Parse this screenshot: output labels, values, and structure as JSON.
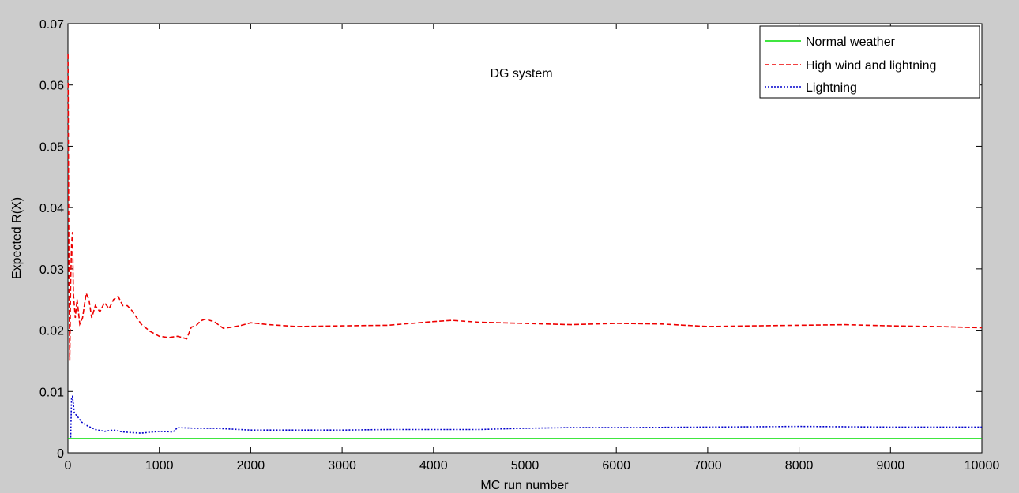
{
  "chart_data": {
    "type": "line",
    "title": "DG system",
    "xlabel": "MC run number",
    "ylabel": "Expected R(X)",
    "xlim": [
      0,
      10000
    ],
    "ylim": [
      0,
      0.07
    ],
    "xticks": [
      0,
      1000,
      2000,
      3000,
      4000,
      5000,
      6000,
      7000,
      8000,
      9000,
      10000
    ],
    "xtick_labels": [
      "0",
      "1000",
      "2000",
      "3000",
      "4000",
      "5000",
      "6000",
      "7000",
      "8000",
      "9000",
      "10000"
    ],
    "yticks": [
      0,
      0.01,
      0.02,
      0.03,
      0.04,
      0.05,
      0.06,
      0.07
    ],
    "ytick_labels": [
      "0",
      "0.01",
      "0.02",
      "0.03",
      "0.04",
      "0.05",
      "0.06",
      "0.07"
    ],
    "grid": false,
    "legend_position": "top-right",
    "series": [
      {
        "name": "Normal weather",
        "color": "#00dd00",
        "style": "solid",
        "x": [
          0,
          10000
        ],
        "y": [
          0.0023,
          0.0023
        ]
      },
      {
        "name": "High wind and lightning",
        "color": "#ee0000",
        "style": "dashed",
        "x": [
          1,
          10,
          20,
          30,
          40,
          50,
          60,
          80,
          100,
          130,
          160,
          200,
          230,
          260,
          300,
          350,
          400,
          450,
          500,
          550,
          600,
          650,
          700,
          800,
          900,
          1000,
          1100,
          1200,
          1300,
          1350,
          1400,
          1450,
          1500,
          1600,
          1700,
          1800,
          1900,
          2000,
          2200,
          2500,
          3000,
          3500,
          4000,
          4200,
          4500,
          5000,
          5500,
          6000,
          6500,
          7000,
          7500,
          8000,
          8500,
          9000,
          9500,
          10000
        ],
        "y": [
          0.065,
          0.03,
          0.015,
          0.028,
          0.034,
          0.036,
          0.026,
          0.022,
          0.025,
          0.021,
          0.022,
          0.026,
          0.025,
          0.022,
          0.024,
          0.023,
          0.0245,
          0.0235,
          0.025,
          0.0255,
          0.024,
          0.024,
          0.0232,
          0.021,
          0.0198,
          0.019,
          0.0188,
          0.019,
          0.0186,
          0.0205,
          0.0207,
          0.0215,
          0.0218,
          0.0214,
          0.0203,
          0.0205,
          0.0208,
          0.0212,
          0.0209,
          0.0206,
          0.0207,
          0.0208,
          0.0214,
          0.0216,
          0.0213,
          0.0211,
          0.0209,
          0.0211,
          0.021,
          0.0206,
          0.0207,
          0.0208,
          0.0209,
          0.0207,
          0.0206,
          0.0204
        ]
      },
      {
        "name": "Lightning",
        "color": "#0000cc",
        "style": "dotted",
        "x": [
          30,
          40,
          50,
          70,
          100,
          150,
          200,
          300,
          400,
          500,
          600,
          800,
          1000,
          1150,
          1200,
          1400,
          1600,
          2000,
          2500,
          3000,
          3500,
          4000,
          4500,
          5000,
          5500,
          6000,
          7000,
          8000,
          9000,
          10000
        ],
        "y": [
          0.0025,
          0.009,
          0.0092,
          0.0065,
          0.006,
          0.005,
          0.0045,
          0.0038,
          0.0035,
          0.0037,
          0.0034,
          0.0032,
          0.0035,
          0.0034,
          0.0041,
          0.004,
          0.004,
          0.0037,
          0.0037,
          0.0037,
          0.0038,
          0.0038,
          0.0038,
          0.004,
          0.0041,
          0.0041,
          0.0042,
          0.0043,
          0.0042,
          0.0042
        ]
      }
    ]
  }
}
